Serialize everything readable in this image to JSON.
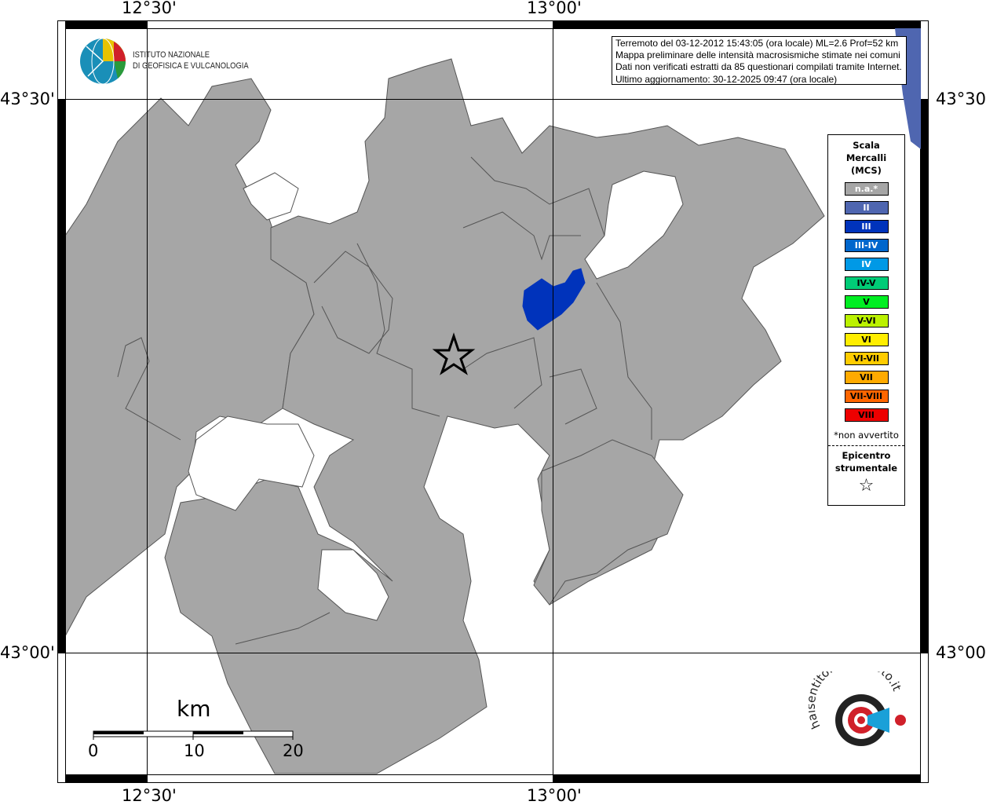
{
  "map": {
    "longitude_labels": [
      "12°30'",
      "13°00'"
    ],
    "latitude_labels": [
      "43°30'",
      "43°00'"
    ],
    "colors": {
      "municipality_fill": "#a6a6a6",
      "intensity_III": "#0033bb",
      "background": "#ffffff"
    }
  },
  "info_box": {
    "lines": [
      "Terremoto del 03-12-2012 15:43:05 (ora locale) ML=2.6 Prof=52 km",
      "Mappa preliminare delle intensità macrosismiche stimate nei comuni",
      "Dati non verificati estratti da 85 questionari compilati tramite Internet.",
      "Ultimo aggiornamento: 30-12-2025 09:47 (ora locale)"
    ]
  },
  "logo": {
    "line1": "ISTITUTO NAZIONALE",
    "line2": "DI GEOFISICA E VULCANOLOGIA"
  },
  "legend": {
    "title": [
      "Scala",
      "Mercalli",
      "(MCS)"
    ],
    "items": [
      {
        "label": "n.a.*",
        "color": "#a6a6a6",
        "text_color": "#ffffff"
      },
      {
        "label": "II",
        "color": "#4f66b0",
        "text_color": "#ffffff"
      },
      {
        "label": "III",
        "color": "#0033bb",
        "text_color": "#ffffff"
      },
      {
        "label": "III-IV",
        "color": "#0066cc",
        "text_color": "#ffffff"
      },
      {
        "label": "IV",
        "color": "#0099e6",
        "text_color": "#ffffff"
      },
      {
        "label": "IV-V",
        "color": "#00cc77",
        "text_color": "#000000"
      },
      {
        "label": "V",
        "color": "#00ee22",
        "text_color": "#000000"
      },
      {
        "label": "V-VI",
        "color": "#bbf200",
        "text_color": "#000000"
      },
      {
        "label": "VI",
        "color": "#ffee00",
        "text_color": "#000000"
      },
      {
        "label": "VI-VII",
        "color": "#ffcc00",
        "text_color": "#000000"
      },
      {
        "label": "VII",
        "color": "#ffaa00",
        "text_color": "#000000"
      },
      {
        "label": "VII-VIII",
        "color": "#ff6600",
        "text_color": "#000000"
      },
      {
        "label": "VIII",
        "color": "#ee0000",
        "text_color": "#000000"
      }
    ],
    "note": "*non avvertito",
    "epicenter_title": [
      "Epicentro",
      "strumentale"
    ]
  },
  "scale_bar": {
    "unit": "km",
    "ticks": [
      "0",
      "10",
      "20"
    ]
  },
  "watermark": "www.haisentitoilterremoto.it"
}
